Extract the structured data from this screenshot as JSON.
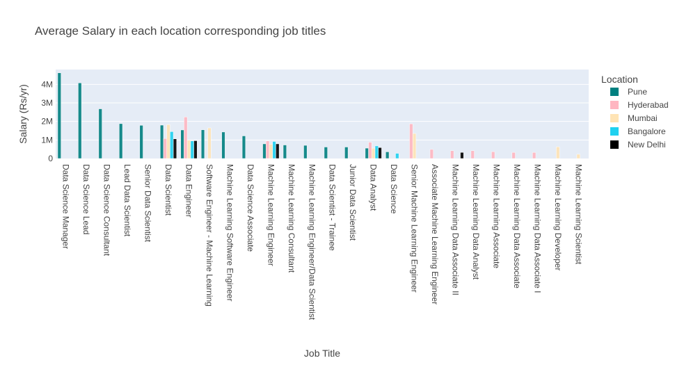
{
  "chart_data": {
    "type": "bar",
    "title": "Average Salary in each location corresponding job titles",
    "xlabel": "Job Title",
    "ylabel": "Salary (Rs/yr)",
    "ylim": [
      0,
      4800000
    ],
    "yticks": [
      {
        "value": 0,
        "label": "0"
      },
      {
        "value": 1000000,
        "label": "1M"
      },
      {
        "value": 2000000,
        "label": "2M"
      },
      {
        "value": 3000000,
        "label": "3M"
      },
      {
        "value": 4000000,
        "label": "4M"
      }
    ],
    "legend_title": "Location",
    "legend_position": "right",
    "background": "#E5ECF6",
    "categories": [
      "Data Science Manager",
      "Data Science Lead",
      "Data Science Consultant",
      "Lead Data Scientist",
      "Senior Data Scientist",
      "Data Scientist",
      "Data Engineer",
      "Software Engineer - Machine Learning",
      "Machine Learning Software Engineer",
      "Data Science Associate",
      "Machine Learning Engineer",
      "Machine Learning Consultant",
      "Machine Learning Engineer/Data Scientist",
      "Data Scientist - Trainee",
      "Junior Data Scientist",
      "Data Analyst",
      "Data Science",
      "Senior Machine Learning Engineer",
      "Associate Machine Learning Engineer",
      "Machine Learning Data Associate II",
      "Machine Learning Data Analyst",
      "Machine Learning Associate",
      "Machine Learning Data Associate",
      "Machine Learning Data Associate I",
      "Machine Learning Developer",
      "Machine Learning Scientist"
    ],
    "series": [
      {
        "name": "Pune",
        "color": "#008080",
        "values": [
          4620000,
          4080000,
          2680000,
          1880000,
          1790000,
          1800000,
          1540000,
          1550000,
          1430000,
          1220000,
          790000,
          730000,
          710000,
          620000,
          620000,
          560000,
          360000,
          null,
          null,
          null,
          null,
          null,
          null,
          null,
          null,
          null
        ]
      },
      {
        "name": "Hyderabad",
        "color": "#FFB6C1",
        "values": [
          null,
          null,
          null,
          null,
          null,
          1080000,
          2240000,
          null,
          null,
          null,
          950000,
          null,
          null,
          null,
          null,
          880000,
          null,
          1870000,
          490000,
          420000,
          420000,
          370000,
          330000,
          330000,
          null,
          null
        ]
      },
      {
        "name": "Mumbai",
        "color": "#FFE4B5",
        "values": [
          null,
          null,
          null,
          null,
          null,
          1830000,
          990000,
          1650000,
          null,
          null,
          770000,
          null,
          null,
          null,
          null,
          560000,
          null,
          1350000,
          null,
          null,
          null,
          null,
          null,
          null,
          630000,
          230000
        ]
      },
      {
        "name": "Bangalore",
        "color": "#1FD1F0",
        "values": [
          null,
          null,
          null,
          null,
          null,
          1450000,
          950000,
          null,
          null,
          null,
          920000,
          null,
          null,
          null,
          null,
          680000,
          280000,
          null,
          null,
          null,
          null,
          null,
          null,
          null,
          null,
          null
        ]
      },
      {
        "name": "New Delhi",
        "color": "#000000",
        "values": [
          null,
          null,
          null,
          null,
          null,
          1060000,
          960000,
          null,
          null,
          null,
          790000,
          null,
          null,
          null,
          null,
          590000,
          null,
          null,
          null,
          330000,
          null,
          null,
          null,
          null,
          null,
          null
        ]
      }
    ]
  }
}
